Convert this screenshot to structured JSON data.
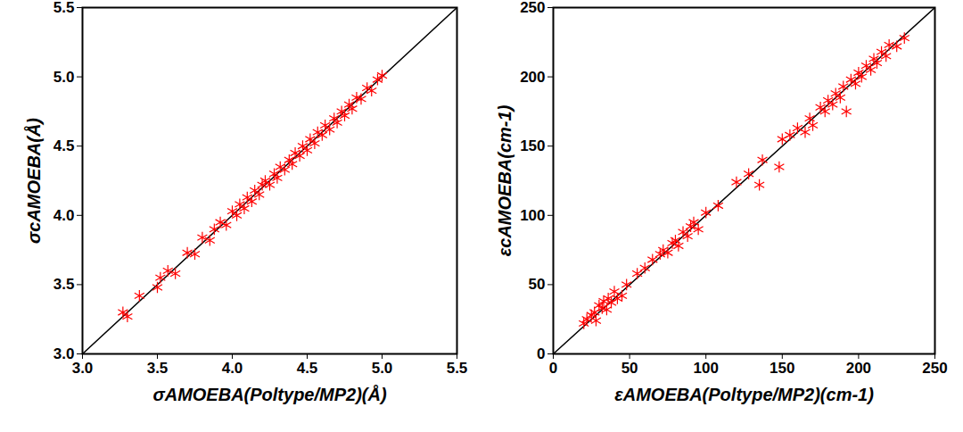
{
  "chart_data": [
    {
      "type": "scatter",
      "x_label": "σAMOEBA(Poltype/MP2)(Å)",
      "y_label": "σcAMOEBA(Å)",
      "xlim": [
        3.0,
        5.5
      ],
      "ylim": [
        3.0,
        5.5
      ],
      "xticks": [
        {
          "value": 3.0,
          "label": "3.0"
        },
        3.5,
        {
          "value": 4.0,
          "label": "4.0"
        },
        4.5,
        {
          "value": 5.0,
          "label": "5.0"
        },
        5.5
      ],
      "yticks": [
        {
          "value": 3.0,
          "label": "3.0"
        },
        3.5,
        {
          "value": 4.0,
          "label": "4.0"
        },
        4.5,
        {
          "value": 5.0,
          "label": "5.0"
        },
        5.5
      ],
      "color": "#ff0000",
      "marker": "asterisk",
      "x": [
        3.27,
        3.3,
        3.38,
        3.5,
        3.52,
        3.57,
        3.62,
        3.7,
        3.75,
        3.8,
        3.85,
        3.88,
        3.92,
        3.96,
        4.0,
        4.03,
        4.05,
        4.08,
        4.1,
        4.13,
        4.15,
        4.18,
        4.2,
        4.22,
        4.25,
        4.28,
        4.3,
        4.32,
        4.35,
        4.38,
        4.4,
        4.42,
        4.45,
        4.47,
        4.5,
        4.52,
        4.55,
        4.57,
        4.6,
        4.62,
        4.65,
        4.68,
        4.7,
        4.73,
        4.75,
        4.78,
        4.8,
        4.83,
        4.86,
        4.9,
        4.93,
        4.97,
        5.0
      ],
      "values": [
        3.3,
        3.27,
        3.42,
        3.48,
        3.55,
        3.6,
        3.58,
        3.73,
        3.72,
        3.84,
        3.82,
        3.9,
        3.95,
        3.93,
        4.03,
        4.0,
        4.08,
        4.05,
        4.13,
        4.1,
        4.18,
        4.15,
        4.22,
        4.25,
        4.22,
        4.3,
        4.27,
        4.35,
        4.33,
        4.4,
        4.37,
        4.45,
        4.43,
        4.5,
        4.47,
        4.55,
        4.52,
        4.6,
        4.58,
        4.65,
        4.62,
        4.7,
        4.67,
        4.75,
        4.72,
        4.8,
        4.77,
        4.85,
        4.84,
        4.92,
        4.9,
        4.98,
        5.01
      ]
    },
    {
      "type": "scatter",
      "x_label": "εAMOEBA(Poltype/MP2)(cm-1)",
      "y_label": "εcAMOEBA(cm-1)",
      "xlim": [
        0,
        250
      ],
      "ylim": [
        0,
        250
      ],
      "xticks": [
        0,
        50,
        100,
        150,
        200,
        250
      ],
      "yticks": [
        0,
        50,
        100,
        150,
        200,
        250
      ],
      "color": "#ff0000",
      "marker": "asterisk",
      "x": [
        20,
        22,
        25,
        27,
        28,
        30,
        32,
        33,
        35,
        36,
        38,
        40,
        42,
        45,
        48,
        55,
        60,
        65,
        70,
        72,
        75,
        78,
        80,
        82,
        85,
        88,
        90,
        92,
        95,
        100,
        108,
        120,
        128,
        135,
        137,
        148,
        150,
        155,
        160,
        165,
        168,
        170,
        175,
        178,
        180,
        183,
        185,
        188,
        190,
        192,
        195,
        198,
        200,
        202,
        205,
        208,
        210,
        212,
        215,
        218,
        220,
        225,
        230
      ],
      "values": [
        22,
        25,
        28,
        30,
        24,
        35,
        33,
        38,
        32,
        40,
        37,
        45,
        40,
        42,
        50,
        58,
        62,
        68,
        72,
        75,
        73,
        80,
        82,
        78,
        88,
        85,
        92,
        95,
        90,
        102,
        107,
        124,
        130,
        122,
        140,
        135,
        155,
        158,
        163,
        160,
        170,
        165,
        178,
        175,
        183,
        180,
        188,
        185,
        193,
        175,
        198,
        195,
        203,
        200,
        208,
        205,
        213,
        210,
        218,
        215,
        223,
        222,
        228
      ]
    }
  ]
}
